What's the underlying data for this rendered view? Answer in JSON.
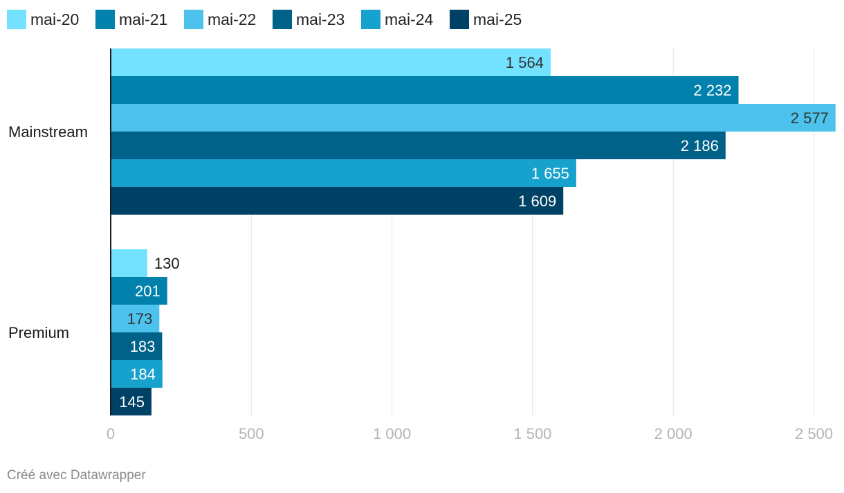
{
  "chart_data": {
    "type": "bar",
    "orientation": "horizontal",
    "title": "",
    "xlabel": "",
    "ylabel": "",
    "categories": [
      "Mainstream",
      "Premium"
    ],
    "series": [
      {
        "name": "mai-20",
        "values": [
          1564,
          130
        ],
        "labels": [
          "1 564",
          "130"
        ],
        "color": "#73e2ff"
      },
      {
        "name": "mai-21",
        "values": [
          2232,
          201
        ],
        "labels": [
          "2 232",
          "201"
        ],
        "color": "#0082ad"
      },
      {
        "name": "mai-22",
        "values": [
          2577,
          173
        ],
        "labels": [
          "2 577",
          "173"
        ],
        "color": "#4cc2ed"
      },
      {
        "name": "mai-23",
        "values": [
          2186,
          183
        ],
        "labels": [
          "2 186",
          "183"
        ],
        "color": "#006189"
      },
      {
        "name": "mai-24",
        "values": [
          1655,
          184
        ],
        "labels": [
          "1 655",
          "184"
        ],
        "color": "#17a2cd"
      },
      {
        "name": "mai-25",
        "values": [
          1609,
          145
        ],
        "labels": [
          "1 609",
          "145"
        ],
        "color": "#004266"
      }
    ],
    "xlim": [
      0,
      2600
    ],
    "x_ticks": [
      0,
      500,
      1000,
      1500,
      2000,
      2500
    ],
    "x_tick_labels": [
      "0",
      "500",
      "1 000",
      "1 500",
      "2 000",
      "2 500"
    ],
    "grid": true,
    "legend_position": "top-left",
    "value_label_colors": {
      "inside_light_bg": "#333333",
      "inside_dark_bg": "#ffffff",
      "outside": "#1a1a1a"
    }
  },
  "footer": {
    "credit": "Créé avec Datawrapper"
  }
}
